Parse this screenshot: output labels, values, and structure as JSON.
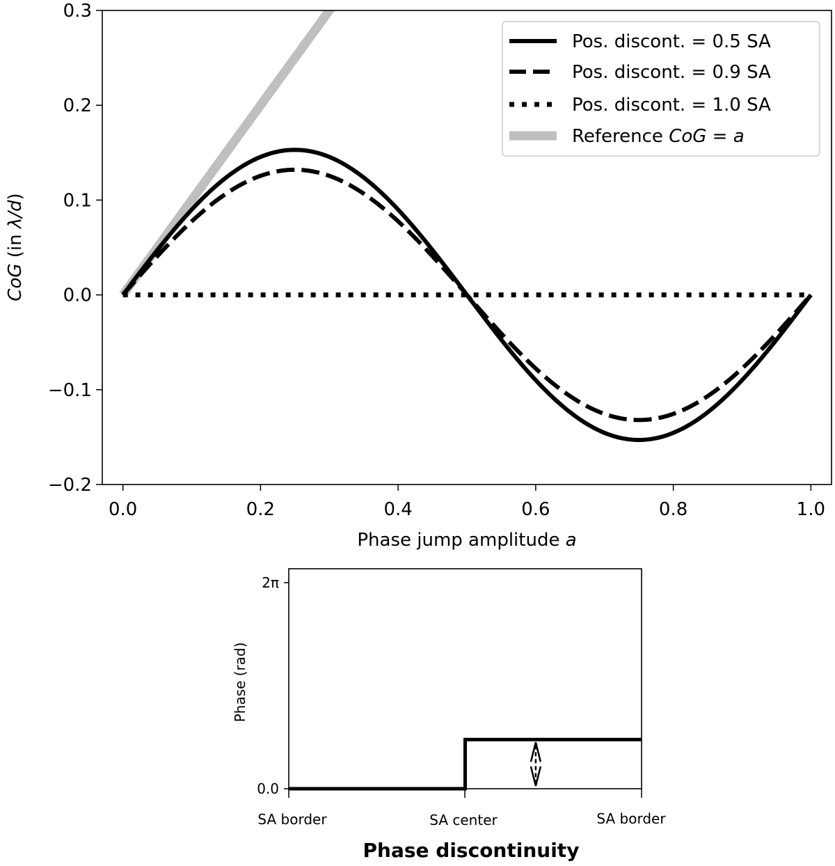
{
  "chart_data": [
    {
      "type": "line",
      "xlabel_text": "Phase jump amplitude ",
      "xlabel_var": "a",
      "ylabel_var": "CoG",
      "ylabel_rest": " (in ",
      "ylabel_unit": "λ/d",
      "ylabel_close": ")",
      "xlim": [
        -0.03,
        1.03
      ],
      "ylim": [
        -0.2,
        0.3
      ],
      "xticks": [
        0.0,
        0.2,
        0.4,
        0.6,
        0.8,
        1.0
      ],
      "xtick_labels": [
        "0.0",
        "0.2",
        "0.4",
        "0.6",
        "0.8",
        "1.0"
      ],
      "yticks": [
        -0.2,
        -0.1,
        0.0,
        0.1,
        0.2,
        0.3
      ],
      "ytick_labels": [
        "−0.2",
        "−0.1",
        "0.0",
        "0.1",
        "0.2",
        "0.3"
      ],
      "legend_position": "top-right",
      "series": [
        {
          "name": "Pos. discont. = 0.5 SA",
          "style": "solid",
          "color": "#000000",
          "formula": "0.153*sin(2*pi*a)",
          "amplitude": 0.153,
          "x": [
            0.0,
            0.125,
            0.25,
            0.375,
            0.5,
            0.625,
            0.75,
            0.875,
            1.0
          ],
          "y": [
            0.0,
            0.108,
            0.153,
            0.108,
            0.0,
            -0.108,
            -0.153,
            -0.108,
            0.0
          ]
        },
        {
          "name": "Pos. discont. = 0.9 SA",
          "style": "dashed",
          "color": "#000000",
          "formula": "0.132*sin(2*pi*a)",
          "amplitude": 0.132,
          "x": [
            0.0,
            0.125,
            0.25,
            0.375,
            0.5,
            0.625,
            0.75,
            0.875,
            1.0
          ],
          "y": [
            0.0,
            0.093,
            0.132,
            0.093,
            0.0,
            -0.093,
            -0.132,
            -0.093,
            0.0
          ]
        },
        {
          "name": "Pos. discont. = 1.0 SA",
          "style": "dotted",
          "color": "#000000",
          "x": [
            0.0,
            1.0
          ],
          "y": [
            0.0,
            0.0
          ]
        },
        {
          "name_prefix": "Reference ",
          "name_math": "CoG = a",
          "style": "thick",
          "color": "#bfbfbf",
          "x": [
            0.0,
            0.31
          ],
          "y": [
            0.0,
            0.31
          ]
        }
      ]
    },
    {
      "type": "line",
      "title": "Phase discontinuity",
      "ylabel": "Phase (rad)",
      "xtick_labels": [
        "SA border",
        "SA center",
        "SA border"
      ],
      "ytick_labels": [
        "0.0",
        "2π"
      ],
      "ylim": [
        0,
        6.2832
      ],
      "series": [
        {
          "name": "phase",
          "style": "solid",
          "color": "#000000",
          "x": [
            0.0,
            0.5,
            0.5,
            1.0
          ],
          "y": [
            0.0,
            0.0,
            1.5,
            1.5
          ]
        }
      ],
      "annotation": {
        "type": "double-arrow",
        "x": 0.7,
        "y_from": 0.0,
        "y_to": 1.5
      }
    }
  ]
}
